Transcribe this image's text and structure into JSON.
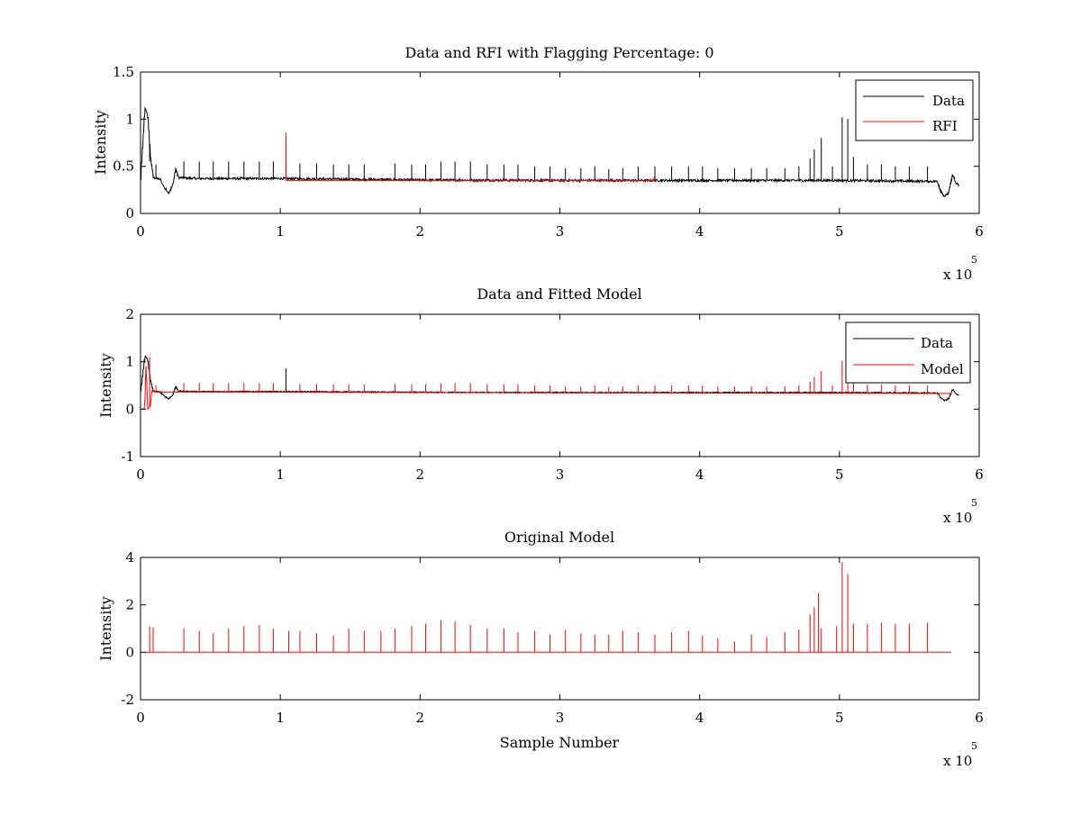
{
  "chart_data": [
    {
      "type": "line",
      "title": "Data and RFI with Flagging Percentage: 0",
      "ylabel": "Intensity",
      "xlabel": "",
      "xlim": [
        0,
        600000
      ],
      "ylim": [
        0,
        1.5
      ],
      "xtick_labels": [
        "0",
        "1",
        "2",
        "3",
        "4",
        "5",
        "6"
      ],
      "ytick_labels": [
        "0",
        "0.5",
        "1",
        "1.5"
      ],
      "ytick_values": [
        0,
        0.5,
        1,
        1.5
      ],
      "x_multiplier": "x 10",
      "x_multiplier_exp": "5",
      "legend": {
        "position": "top-right",
        "entries": [
          {
            "label": "Data",
            "color": "#000000"
          },
          {
            "label": "RFI",
            "color": "#ff0000"
          }
        ]
      },
      "series": [
        {
          "name": "Data",
          "color": "#000000",
          "baseline": [
            [
              0,
              0.37
            ],
            [
              3000,
              1.12
            ],
            [
              5000,
              1.05
            ],
            [
              7000,
              0.6
            ],
            [
              9000,
              0.38
            ],
            [
              14000,
              0.36
            ],
            [
              17000,
              0.27
            ],
            [
              20000,
              0.22
            ],
            [
              23000,
              0.3
            ],
            [
              25000,
              0.48
            ],
            [
              27000,
              0.38
            ],
            [
              40000,
              0.37
            ],
            [
              100000,
              0.37
            ],
            [
              200000,
              0.355
            ],
            [
              300000,
              0.35
            ],
            [
              400000,
              0.35
            ],
            [
              500000,
              0.35
            ],
            [
              570000,
              0.34
            ],
            [
              572000,
              0.25
            ],
            [
              575000,
              0.18
            ],
            [
              578000,
              0.22
            ],
            [
              581000,
              0.42
            ],
            [
              583000,
              0.32
            ],
            [
              585000,
              0.3
            ]
          ],
          "noise": 0.012,
          "spikes": [
            [
              6500,
              0.55
            ],
            [
              11000,
              0.52
            ],
            [
              31000,
              0.55
            ],
            [
              42000,
              0.55
            ],
            [
              52000,
              0.55
            ],
            [
              63000,
              0.55
            ],
            [
              74000,
              0.55
            ],
            [
              85000,
              0.55
            ],
            [
              95000,
              0.55
            ],
            [
              114000,
              0.53
            ],
            [
              126000,
              0.53
            ],
            [
              138000,
              0.52
            ],
            [
              149000,
              0.52
            ],
            [
              160000,
              0.52
            ],
            [
              182000,
              0.53
            ],
            [
              194000,
              0.52
            ],
            [
              204000,
              0.52
            ],
            [
              215000,
              0.55
            ],
            [
              225000,
              0.55
            ],
            [
              236000,
              0.55
            ],
            [
              248000,
              0.52
            ],
            [
              260000,
              0.52
            ],
            [
              270000,
              0.52
            ],
            [
              282000,
              0.5
            ],
            [
              293000,
              0.5
            ],
            [
              304000,
              0.48
            ],
            [
              315000,
              0.48
            ],
            [
              325000,
              0.5
            ],
            [
              335000,
              0.47
            ],
            [
              345000,
              0.48
            ],
            [
              356000,
              0.5
            ],
            [
              368000,
              0.5
            ],
            [
              380000,
              0.5
            ],
            [
              392000,
              0.5
            ],
            [
              402000,
              0.5
            ],
            [
              413000,
              0.48
            ],
            [
              425000,
              0.48
            ],
            [
              437000,
              0.48
            ],
            [
              448000,
              0.48
            ],
            [
              461000,
              0.48
            ],
            [
              471000,
              0.5
            ],
            [
              479000,
              0.58
            ],
            [
              482000,
              0.68
            ],
            [
              487000,
              0.8
            ],
            [
              495000,
              0.5
            ],
            [
              502000,
              1.02
            ],
            [
              506000,
              1.0
            ],
            [
              510000,
              0.6
            ],
            [
              520000,
              0.52
            ],
            [
              530000,
              0.52
            ],
            [
              540000,
              0.5
            ],
            [
              550000,
              0.5
            ],
            [
              563000,
              0.5
            ]
          ]
        },
        {
          "name": "RFI",
          "color": "#ff0000",
          "points": [
            [
              104000,
              0.35
            ],
            [
              104000,
              0.86
            ],
            [
              104200,
              0.35
            ],
            [
              367500,
              0.35
            ],
            [
              367500,
              0.39
            ],
            [
              367700,
              0.35
            ]
          ]
        }
      ]
    },
    {
      "type": "line",
      "title": "Data and Fitted Model",
      "ylabel": "Intensity",
      "xlabel": "",
      "xlim": [
        0,
        600000
      ],
      "ylim": [
        -1,
        2
      ],
      "xtick_labels": [
        "0",
        "1",
        "2",
        "3",
        "4",
        "5",
        "6"
      ],
      "ytick_labels": [
        "-1",
        "0",
        "1",
        "2"
      ],
      "ytick_values": [
        -1,
        0,
        1,
        2
      ],
      "x_multiplier": "x 10",
      "x_multiplier_exp": "5",
      "legend": {
        "position": "top-right",
        "entries": [
          {
            "label": "Data",
            "color": "#000000"
          },
          {
            "label": "Model",
            "color": "#ff0000"
          }
        ]
      },
      "series": [
        {
          "name": "Data",
          "color": "#000000",
          "baseline": [
            [
              0,
              0.37
            ],
            [
              3000,
              1.12
            ],
            [
              5000,
              1.05
            ],
            [
              7000,
              0.6
            ],
            [
              9000,
              0.38
            ],
            [
              14000,
              0.36
            ],
            [
              17000,
              0.27
            ],
            [
              20000,
              0.22
            ],
            [
              23000,
              0.3
            ],
            [
              25000,
              0.48
            ],
            [
              27000,
              0.38
            ],
            [
              40000,
              0.37
            ],
            [
              100000,
              0.37
            ],
            [
              200000,
              0.355
            ],
            [
              300000,
              0.35
            ],
            [
              400000,
              0.35
            ],
            [
              500000,
              0.35
            ],
            [
              570000,
              0.34
            ],
            [
              572000,
              0.25
            ],
            [
              575000,
              0.18
            ],
            [
              578000,
              0.22
            ],
            [
              581000,
              0.42
            ],
            [
              583000,
              0.32
            ],
            [
              585000,
              0.3
            ]
          ],
          "noise": 0.012,
          "spikes": [
            [
              104000,
              0.86
            ]
          ]
        },
        {
          "name": "Model",
          "color": "#ff0000",
          "baseline": [
            [
              0,
              0.0
            ],
            [
              3000,
              0.0
            ],
            [
              4000,
              1.05
            ],
            [
              5000,
              0.0
            ],
            [
              7000,
              0.05
            ],
            [
              8000,
              0.4
            ],
            [
              10000,
              0.36
            ],
            [
              60000,
              0.36
            ],
            [
              200000,
              0.35
            ],
            [
              400000,
              0.34
            ],
            [
              580000,
              0.33
            ]
          ],
          "noise": 0.0,
          "spikes": [
            [
              6500,
              1.1
            ],
            [
              11000,
              0.5
            ],
            [
              31000,
              0.55
            ],
            [
              42000,
              0.55
            ],
            [
              52000,
              0.55
            ],
            [
              63000,
              0.55
            ],
            [
              74000,
              0.55
            ],
            [
              85000,
              0.55
            ],
            [
              95000,
              0.55
            ],
            [
              114000,
              0.53
            ],
            [
              126000,
              0.53
            ],
            [
              138000,
              0.52
            ],
            [
              149000,
              0.52
            ],
            [
              160000,
              0.52
            ],
            [
              182000,
              0.53
            ],
            [
              194000,
              0.52
            ],
            [
              204000,
              0.52
            ],
            [
              215000,
              0.55
            ],
            [
              225000,
              0.55
            ],
            [
              236000,
              0.55
            ],
            [
              248000,
              0.52
            ],
            [
              260000,
              0.52
            ],
            [
              270000,
              0.52
            ],
            [
              282000,
              0.5
            ],
            [
              293000,
              0.5
            ],
            [
              304000,
              0.48
            ],
            [
              315000,
              0.48
            ],
            [
              325000,
              0.5
            ],
            [
              335000,
              0.47
            ],
            [
              345000,
              0.48
            ],
            [
              356000,
              0.5
            ],
            [
              368000,
              0.5
            ],
            [
              380000,
              0.5
            ],
            [
              392000,
              0.5
            ],
            [
              402000,
              0.5
            ],
            [
              413000,
              0.48
            ],
            [
              425000,
              0.48
            ],
            [
              437000,
              0.48
            ],
            [
              448000,
              0.48
            ],
            [
              461000,
              0.48
            ],
            [
              471000,
              0.5
            ],
            [
              479000,
              0.58
            ],
            [
              482000,
              0.68
            ],
            [
              487000,
              0.8
            ],
            [
              495000,
              0.5
            ],
            [
              502000,
              1.02
            ],
            [
              506000,
              1.0
            ],
            [
              510000,
              0.6
            ],
            [
              520000,
              0.52
            ],
            [
              530000,
              0.52
            ],
            [
              540000,
              0.5
            ],
            [
              550000,
              0.5
            ],
            [
              563000,
              0.5
            ]
          ]
        }
      ]
    },
    {
      "type": "line",
      "title": "Original Model",
      "ylabel": "Intensity",
      "xlabel": "Sample Number",
      "xlim": [
        0,
        600000
      ],
      "ylim": [
        -2,
        4
      ],
      "xtick_labels": [
        "0",
        "1",
        "2",
        "3",
        "4",
        "5",
        "6"
      ],
      "ytick_labels": [
        "-2",
        "0",
        "2",
        "4"
      ],
      "ytick_values": [
        -2,
        0,
        2,
        4
      ],
      "x_multiplier": "x 10",
      "x_multiplier_exp": "5",
      "series": [
        {
          "name": "Model",
          "color": "#ff0000",
          "baseline": [
            [
              3000,
              0
            ],
            [
              580000,
              0
            ]
          ],
          "noise": 0.0,
          "spikes": [
            [
              6500,
              1.1
            ],
            [
              9000,
              1.05
            ],
            [
              31000,
              1.0
            ],
            [
              42000,
              0.9
            ],
            [
              52000,
              0.8
            ],
            [
              63000,
              1.0
            ],
            [
              74000,
              1.1
            ],
            [
              85000,
              1.15
            ],
            [
              95000,
              1.0
            ],
            [
              106000,
              0.9
            ],
            [
              114000,
              0.9
            ],
            [
              126000,
              0.8
            ],
            [
              138000,
              0.7
            ],
            [
              149000,
              1.0
            ],
            [
              160000,
              0.9
            ],
            [
              172000,
              0.9
            ],
            [
              182000,
              1.0
            ],
            [
              194000,
              1.1
            ],
            [
              204000,
              1.2
            ],
            [
              215000,
              1.35
            ],
            [
              225000,
              1.3
            ],
            [
              236000,
              1.15
            ],
            [
              248000,
              1.0
            ],
            [
              260000,
              1.0
            ],
            [
              270000,
              0.85
            ],
            [
              282000,
              0.9
            ],
            [
              293000,
              0.75
            ],
            [
              304000,
              0.95
            ],
            [
              315000,
              0.8
            ],
            [
              325000,
              0.75
            ],
            [
              335000,
              0.75
            ],
            [
              345000,
              0.9
            ],
            [
              356000,
              0.85
            ],
            [
              368000,
              0.75
            ],
            [
              380000,
              0.85
            ],
            [
              392000,
              0.9
            ],
            [
              402000,
              0.7
            ],
            [
              413000,
              0.6
            ],
            [
              425000,
              0.45
            ],
            [
              437000,
              0.75
            ],
            [
              448000,
              0.65
            ],
            [
              461000,
              0.85
            ],
            [
              471000,
              0.95
            ],
            [
              479000,
              1.6
            ],
            [
              482000,
              1.9
            ],
            [
              485000,
              2.5
            ],
            [
              487000,
              1.0
            ],
            [
              498000,
              1.1
            ],
            [
              502000,
              3.8
            ],
            [
              506000,
              3.3
            ],
            [
              510000,
              1.2
            ],
            [
              520000,
              1.2
            ],
            [
              530000,
              1.25
            ],
            [
              540000,
              1.2
            ],
            [
              550000,
              1.2
            ],
            [
              563000,
              1.25
            ]
          ]
        }
      ]
    }
  ]
}
